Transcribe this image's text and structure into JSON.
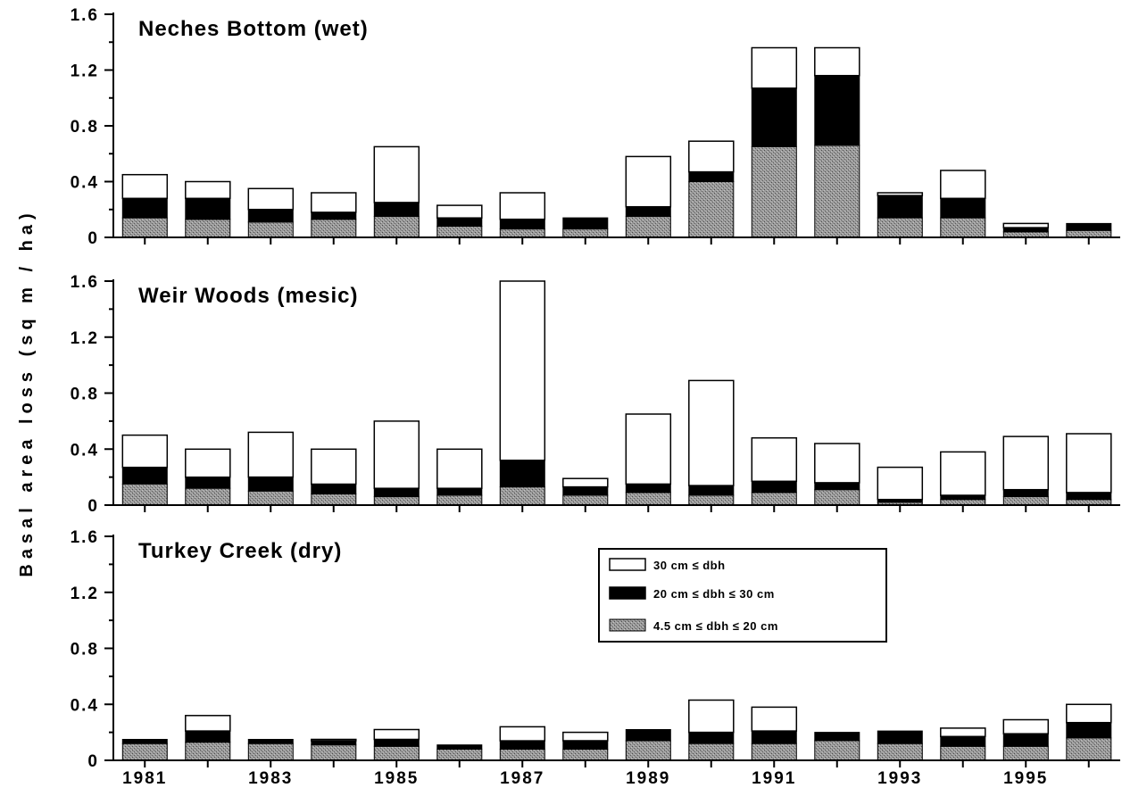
{
  "chart_data": {
    "type": "bar",
    "stacked": true,
    "ylabel": "Basal area loss (sq m / ha)",
    "xlabel": "",
    "categories": [
      "1981",
      "1982",
      "1983",
      "1984",
      "1985",
      "1986",
      "1987",
      "1988",
      "1989",
      "1990",
      "1991",
      "1992",
      "1993",
      "1994",
      "1995",
      "1996"
    ],
    "x_tick_labels": [
      "1981",
      "1983",
      "1985",
      "1987",
      "1989",
      "1991",
      "1993",
      "1995"
    ],
    "y_ticks": [
      "0",
      "0.4",
      "0.8",
      "1.2",
      "1.6"
    ],
    "ylim": [
      0,
      1.6
    ],
    "legend": {
      "placement": "inside bottom panel, upper center-right",
      "entries": [
        {
          "label": "30 cm ≤ dbh",
          "color": "#ffffff"
        },
        {
          "label": "20 cm ≤ dbh ≤ 30 cm",
          "color": "#000000"
        },
        {
          "label": "4.5 cm ≤ dbh ≤ 20 cm",
          "color": "#8c8c8c"
        }
      ]
    },
    "panels": [
      {
        "title": "Neches Bottom (wet)",
        "series": [
          {
            "name": "4.5 cm ≤ dbh ≤ 20 cm",
            "values": [
              0.14,
              0.13,
              0.11,
              0.13,
              0.15,
              0.08,
              0.06,
              0.06,
              0.15,
              0.4,
              0.65,
              0.66,
              0.14,
              0.14,
              0.04,
              0.05
            ]
          },
          {
            "name": "20 cm ≤ dbh ≤ 30 cm",
            "values": [
              0.14,
              0.15,
              0.09,
              0.05,
              0.1,
              0.06,
              0.07,
              0.08,
              0.07,
              0.07,
              0.42,
              0.5,
              0.16,
              0.14,
              0.03,
              0.05
            ]
          },
          {
            "name": "30 cm ≤ dbh",
            "values": [
              0.17,
              0.12,
              0.15,
              0.14,
              0.4,
              0.09,
              0.19,
              0.0,
              0.36,
              0.22,
              0.29,
              0.2,
              0.02,
              0.2,
              0.03,
              0.0
            ]
          }
        ]
      },
      {
        "title": "Weir Woods (mesic)",
        "series": [
          {
            "name": "4.5 cm ≤ dbh ≤ 20 cm",
            "values": [
              0.15,
              0.12,
              0.1,
              0.08,
              0.06,
              0.07,
              0.13,
              0.07,
              0.09,
              0.07,
              0.09,
              0.11,
              0.02,
              0.04,
              0.06,
              0.04
            ]
          },
          {
            "name": "20 cm ≤ dbh ≤ 30 cm",
            "values": [
              0.12,
              0.08,
              0.1,
              0.07,
              0.06,
              0.05,
              0.19,
              0.06,
              0.06,
              0.07,
              0.08,
              0.05,
              0.02,
              0.03,
              0.05,
              0.05
            ]
          },
          {
            "name": "30 cm ≤ dbh",
            "values": [
              0.23,
              0.2,
              0.32,
              0.25,
              0.48,
              0.28,
              1.28,
              0.06,
              0.5,
              0.75,
              0.31,
              0.28,
              0.23,
              0.31,
              0.38,
              0.42
            ]
          }
        ]
      },
      {
        "title": "Turkey Creek (dry)",
        "series": [
          {
            "name": "4.5 cm ≤ dbh ≤ 20 cm",
            "values": [
              0.12,
              0.13,
              0.12,
              0.11,
              0.1,
              0.08,
              0.08,
              0.08,
              0.14,
              0.12,
              0.12,
              0.14,
              0.12,
              0.1,
              0.1,
              0.16
            ]
          },
          {
            "name": "20 cm ≤ dbh ≤ 30 cm",
            "values": [
              0.03,
              0.08,
              0.03,
              0.03,
              0.05,
              0.03,
              0.06,
              0.06,
              0.08,
              0.08,
              0.09,
              0.06,
              0.09,
              0.07,
              0.09,
              0.11
            ]
          },
          {
            "name": "30 cm ≤ dbh",
            "values": [
              0.0,
              0.11,
              0.0,
              0.01,
              0.07,
              0.0,
              0.1,
              0.06,
              0.0,
              0.23,
              0.17,
              0.0,
              0.0,
              0.06,
              0.1,
              0.13
            ]
          }
        ]
      }
    ]
  }
}
